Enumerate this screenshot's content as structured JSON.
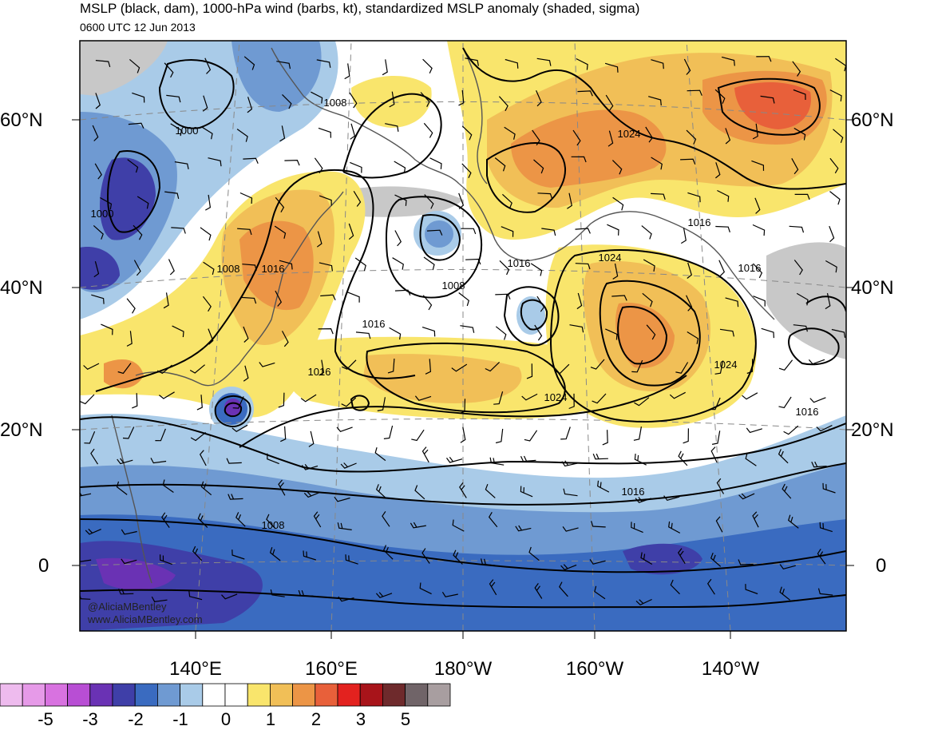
{
  "header": {
    "title": "MSLP (black, dam), 1000-hPa wind (barbs, kt), standardized MSLP anomaly (shaded, sigma)",
    "subtitle": "0600 UTC 12 Jun 2013"
  },
  "axes": {
    "lat_left": [
      "60°N",
      "40°N",
      "20°N",
      "0"
    ],
    "lat_right": [
      "60°N",
      "40°N",
      "20°N",
      "0"
    ],
    "lon": [
      "140°E",
      "160°E",
      "180°W",
      "160°W",
      "140°W"
    ]
  },
  "isobar_labels": [
    "1008",
    "1000",
    "1000",
    "1008",
    "1016",
    "1008",
    "1016",
    "1016",
    "1016",
    "1024",
    "1016",
    "1024",
    "1024",
    "1016",
    "1016",
    "1024",
    "1016",
    "1008"
  ],
  "colorbar": {
    "colors": [
      "#eebbee",
      "#e69ae8",
      "#d872e0",
      "#b84ed4",
      "#6a32b4",
      "#3f3fa8",
      "#3a6bc0",
      "#6f9ad2",
      "#a9cbe8",
      "#ffffff",
      "#ffffff",
      "#f9e56c",
      "#f1bf57",
      "#ec9546",
      "#e8603a",
      "#e3221f",
      "#a8141a",
      "#6e2a2c",
      "#706468",
      "#a89ea0"
    ],
    "tick_labels": [
      "-5",
      "-3",
      "-2",
      "-1",
      "0",
      "1",
      "2",
      "3",
      "5"
    ]
  },
  "credit": {
    "handle": "@AliciaMBentley",
    "url": "www.AliciaMBentley.com"
  }
}
